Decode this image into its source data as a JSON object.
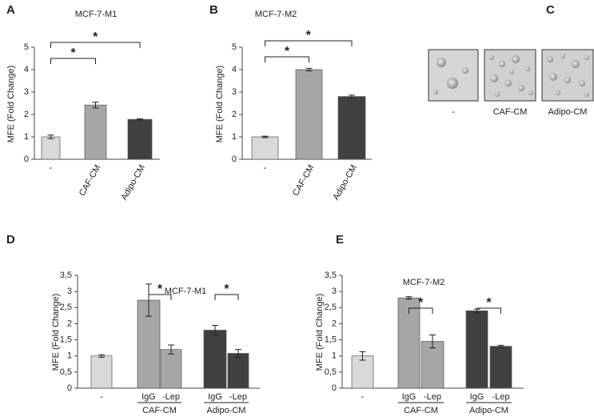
{
  "chart_data": [
    {
      "type": "bar",
      "panel_label": "A",
      "title": "MCF-7-M1",
      "y_label": "MFE (Fold Change)",
      "categories": [
        "-",
        "CAF-CM",
        "Adipo-CM"
      ],
      "values": [
        1.0,
        2.42,
        1.78
      ],
      "errors": [
        0.08,
        0.13,
        0.03
      ],
      "colors": [
        "#d9d9d9",
        "#a6a6a6",
        "#404040"
      ],
      "ylim": [
        0,
        5
      ],
      "yticks": [
        0,
        1,
        2,
        3,
        4,
        5
      ],
      "significance": [
        "*",
        "*"
      ]
    },
    {
      "type": "bar",
      "panel_label": "B",
      "title": "MCF-7-M2",
      "y_label": "MFE (Fold Change)",
      "categories": [
        "-",
        "CAF-CM",
        "Adipo-CM"
      ],
      "values": [
        1.0,
        4.0,
        2.8
      ],
      "errors": [
        0.03,
        0.06,
        0.06
      ],
      "colors": [
        "#d9d9d9",
        "#a6a6a6",
        "#404040"
      ],
      "ylim": [
        0,
        5
      ],
      "yticks": [
        0,
        1,
        2,
        3,
        4,
        5
      ],
      "significance": [
        "*",
        "*"
      ]
    },
    {
      "type": "bar",
      "panel_label": "D",
      "title": "MCF-7-M1",
      "y_label": "MFE (Fold Change)",
      "categories": [
        "-",
        "IgG",
        "-Lep",
        "IgG",
        "-Lep"
      ],
      "values": [
        1.0,
        2.73,
        1.2,
        1.8,
        1.08
      ],
      "errors": [
        0.04,
        0.5,
        0.14,
        0.15,
        0.12
      ],
      "colors": [
        "#d9d9d9",
        "#a6a6a6",
        "#a6a6a6",
        "#404040",
        "#404040"
      ],
      "ylim": [
        0,
        3.5
      ],
      "yticks": [
        0,
        {
          "value": 0.5,
          "label": "0,5"
        },
        1,
        {
          "value": 1.5,
          "label": "1,5"
        },
        2,
        {
          "value": 2.5,
          "label": "2,5"
        },
        3,
        {
          "value": 3.5,
          "label": "3,5"
        }
      ],
      "groups": [
        "CAF-CM",
        "Adipo-CM"
      ],
      "significance": [
        "*",
        "*"
      ]
    },
    {
      "type": "bar",
      "panel_label": "E",
      "title": "MCF-7-M2",
      "y_label": "MFE (Fold Change)",
      "categories": [
        "-",
        "IgG",
        "-Lep",
        "IgG",
        "-Lep"
      ],
      "values": [
        1.0,
        2.8,
        1.45,
        2.4,
        1.3
      ],
      "errors": [
        0.13,
        0.04,
        0.2,
        0.05,
        0.03
      ],
      "colors": [
        "#d9d9d9",
        "#a6a6a6",
        "#a6a6a6",
        "#404040",
        "#404040"
      ],
      "ylim": [
        0,
        3.5
      ],
      "yticks": [
        0,
        {
          "value": 0.5,
          "label": "0,5"
        },
        1,
        {
          "value": 1.5,
          "label": "1,5"
        },
        2,
        {
          "value": 2.5,
          "label": "2,5"
        },
        3,
        {
          "value": 3.5,
          "label": "3,5"
        }
      ],
      "groups": [
        "CAF-CM",
        "Adipo-CM"
      ],
      "significance": [
        "*",
        "*"
      ]
    }
  ],
  "panel_c": {
    "panel_label": "C",
    "labels": [
      "-",
      "CAF-CM",
      "Adipo-CM"
    ]
  }
}
